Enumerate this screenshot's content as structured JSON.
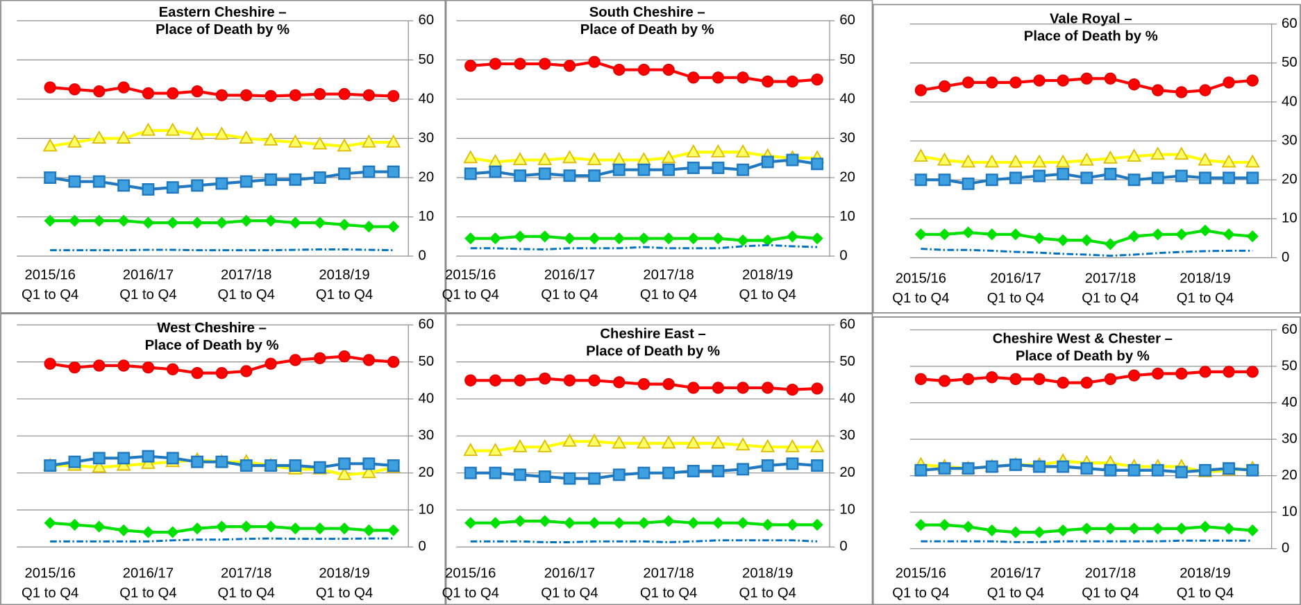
{
  "chart_data": [
    {
      "type": "line",
      "title": "Eastern Cheshire –\nPlace of Death by %",
      "categories": [
        "2015/16\nQ1 to Q4",
        null,
        null,
        null,
        "2016/17\nQ1 to Q4",
        null,
        null,
        null,
        "2017/18\nQ1 to Q4",
        null,
        null,
        null,
        "2018/19\nQ1 to Q4",
        null,
        null
      ],
      "series": [
        {
          "color": "#ff0000",
          "marker": "circle",
          "values": [
            43,
            42.5,
            42,
            43,
            41.5,
            41.5,
            42,
            41,
            41,
            40.8,
            41,
            41.3,
            41.3,
            41,
            40.8
          ]
        },
        {
          "color": "#ffff00",
          "marker": "triangle",
          "values": [
            28,
            29,
            30,
            30,
            32,
            32,
            31,
            31,
            30,
            29.5,
            29,
            28.5,
            28,
            29,
            29
          ]
        },
        {
          "color": "#1f78c0",
          "marker": "square",
          "values": [
            20,
            19,
            19,
            18,
            17,
            17.5,
            18,
            18.5,
            19,
            19.5,
            19.5,
            20,
            21,
            21.5,
            21.5
          ]
        },
        {
          "color": "#00e000",
          "marker": "diamond",
          "values": [
            9,
            9,
            9,
            9,
            8.5,
            8.5,
            8.5,
            8.5,
            9,
            9,
            8.5,
            8.5,
            8,
            7.5,
            7.5
          ]
        },
        {
          "color": "#0070c0",
          "dash": "dashdot",
          "values": [
            1.5,
            1.5,
            1.5,
            1.5,
            1.6,
            1.6,
            1.5,
            1.5,
            1.5,
            1.5,
            1.6,
            1.7,
            1.7,
            1.6,
            1.5
          ]
        }
      ],
      "ylim": [
        0,
        60
      ],
      "yticks": [
        0,
        10,
        20,
        30,
        40,
        50,
        60
      ],
      "grid": true
    },
    {
      "type": "line",
      "title": "South Cheshire –\nPlace of Death by %",
      "categories": [
        "2015/16\nQ1 to Q4",
        null,
        null,
        null,
        "2016/17\nQ1 to Q4",
        null,
        null,
        null,
        "2017/18\nQ1 to Q4",
        null,
        null,
        null,
        "2018/19\nQ1 to Q4",
        null,
        null
      ],
      "series": [
        {
          "color": "#ff0000",
          "marker": "circle",
          "values": [
            48.5,
            49,
            49,
            49,
            48.5,
            49.5,
            47.5,
            47.5,
            47.5,
            45.5,
            45.5,
            45.5,
            44.5,
            44.5,
            45
          ]
        },
        {
          "color": "#ffff00",
          "marker": "triangle",
          "values": [
            25,
            24,
            24.5,
            24.5,
            25,
            24.5,
            24.5,
            24.5,
            25,
            26.5,
            26.5,
            26.5,
            25.5,
            25,
            25
          ]
        },
        {
          "color": "#1f78c0",
          "marker": "square",
          "values": [
            21,
            21.5,
            20.5,
            21,
            20.5,
            20.5,
            22,
            22,
            22,
            22.5,
            22.5,
            22,
            24,
            24.5,
            23.5
          ]
        },
        {
          "color": "#00e000",
          "marker": "diamond",
          "values": [
            4.5,
            4.5,
            5,
            5,
            4.5,
            4.5,
            4.5,
            4.5,
            4.5,
            4.5,
            4.5,
            4,
            4,
            5,
            4.5
          ]
        },
        {
          "color": "#0070c0",
          "dash": "dashdot",
          "values": [
            2,
            2,
            1.8,
            1.7,
            2,
            2,
            2,
            2.3,
            2,
            2,
            2,
            2.5,
            2.8,
            2.5,
            2.3
          ]
        }
      ],
      "ylim": [
        0,
        60
      ],
      "yticks": [
        0,
        10,
        20,
        30,
        40,
        50,
        60
      ],
      "grid": true
    },
    {
      "type": "line",
      "title": "Vale Royal –\nPlace of Death by %",
      "categories": [
        "2015/16\nQ1 to Q4",
        null,
        null,
        null,
        "2016/17\nQ1 to Q4",
        null,
        null,
        null,
        "2017/18\nQ1 to Q4",
        null,
        null,
        null,
        "2018/19\nQ1 to Q4",
        null,
        null
      ],
      "series": [
        {
          "color": "#ff0000",
          "marker": "circle",
          "values": [
            43,
            44,
            45,
            45,
            45,
            45.5,
            45.5,
            46,
            46,
            44.5,
            43,
            42.5,
            43,
            45,
            45.5
          ]
        },
        {
          "color": "#ffff00",
          "marker": "triangle",
          "values": [
            26,
            25,
            24.5,
            24.5,
            24.5,
            24.5,
            24.5,
            25,
            25.5,
            26,
            26.5,
            26.5,
            25,
            24.5,
            24.5
          ]
        },
        {
          "color": "#1f78c0",
          "marker": "square",
          "values": [
            20,
            20,
            19,
            20,
            20.5,
            21,
            21.5,
            20.5,
            21.5,
            20,
            20.5,
            21,
            20.5,
            20.5,
            20.5
          ]
        },
        {
          "color": "#00e000",
          "marker": "diamond",
          "values": [
            6,
            6,
            6.5,
            6,
            6,
            5,
            4.5,
            4.5,
            3.5,
            5.5,
            6,
            6,
            7,
            6,
            5.5
          ]
        },
        {
          "color": "#0070c0",
          "dash": "dashdot",
          "values": [
            2.3,
            2,
            2,
            1.8,
            1.5,
            1.3,
            1,
            0.8,
            0.5,
            0.8,
            1.2,
            1.5,
            1.7,
            1.8,
            1.8
          ]
        }
      ],
      "ylim": [
        0,
        60
      ],
      "yticks": [
        0,
        10,
        20,
        30,
        40,
        50,
        60
      ],
      "grid": true
    },
    {
      "type": "line",
      "title": "West Cheshire –\nPlace of Death by %",
      "categories": [
        "2015/16\nQ1 to Q4",
        null,
        null,
        null,
        "2016/17\nQ1 to Q4",
        null,
        null,
        null,
        "2017/18\nQ1 to Q4",
        null,
        null,
        null,
        "2018/19\nQ1 to Q4",
        null,
        null
      ],
      "series": [
        {
          "color": "#ff0000",
          "marker": "circle",
          "values": [
            49.5,
            48.5,
            49,
            49,
            48.5,
            48,
            47,
            47,
            47.5,
            49.5,
            50.5,
            51,
            51.5,
            50.5,
            50
          ]
        },
        {
          "color": "#ffff00",
          "marker": "triangle",
          "values": [
            22,
            22,
            21.5,
            22,
            22.5,
            23,
            23.5,
            23,
            23,
            22,
            21,
            21,
            19.5,
            20,
            21.5
          ]
        },
        {
          "color": "#1f78c0",
          "marker": "square",
          "values": [
            22,
            23,
            24,
            24,
            24.5,
            24,
            23,
            23,
            22,
            22,
            22,
            21.5,
            22.5,
            22.5,
            22
          ]
        },
        {
          "color": "#00e000",
          "marker": "diamond",
          "values": [
            6.5,
            6,
            5.5,
            4.5,
            4,
            4,
            5,
            5.5,
            5.5,
            5.5,
            5,
            5,
            5,
            4.5,
            4.5
          ]
        },
        {
          "color": "#0070c0",
          "dash": "dashdot",
          "values": [
            1.5,
            1.5,
            1.5,
            1.5,
            1.5,
            1.8,
            2,
            2,
            2.2,
            2.3,
            2.2,
            2.2,
            2.2,
            2.3,
            2.3
          ]
        }
      ],
      "ylim": [
        0,
        60
      ],
      "yticks": [
        0,
        10,
        20,
        30,
        40,
        50,
        60
      ],
      "grid": true
    },
    {
      "type": "line",
      "title": "Cheshire East –\nPlace of Death by %",
      "categories": [
        "2015/16\nQ1 to Q4",
        null,
        null,
        null,
        "2016/17\nQ1 to Q4",
        null,
        null,
        null,
        "2017/18\nQ1 to Q4",
        null,
        null,
        null,
        "2018/19\nQ1 to Q4",
        null,
        null
      ],
      "series": [
        {
          "color": "#ff0000",
          "marker": "circle",
          "values": [
            45,
            45,
            45,
            45.5,
            45,
            45,
            44.5,
            44,
            44,
            43,
            43,
            43,
            43,
            42.5,
            42.8
          ]
        },
        {
          "color": "#ffff00",
          "marker": "triangle",
          "values": [
            26,
            26,
            27,
            27,
            28.5,
            28.5,
            28,
            28,
            28,
            28,
            28,
            27.5,
            27,
            27,
            27
          ]
        },
        {
          "color": "#1f78c0",
          "marker": "square",
          "values": [
            20,
            20,
            19.5,
            19,
            18.5,
            18.5,
            19.5,
            20,
            20,
            20.5,
            20.5,
            21,
            22,
            22.5,
            22
          ]
        },
        {
          "color": "#00e000",
          "marker": "diamond",
          "values": [
            6.5,
            6.5,
            7,
            7,
            6.5,
            6.5,
            6.5,
            6.5,
            7,
            6.5,
            6.5,
            6.5,
            6,
            6,
            6
          ]
        },
        {
          "color": "#0070c0",
          "dash": "dashdot",
          "values": [
            1.5,
            1.5,
            1.5,
            1.3,
            1.3,
            1.5,
            1.5,
            1.5,
            1.3,
            1.5,
            1.8,
            1.8,
            1.8,
            1.8,
            1.5
          ]
        }
      ],
      "ylim": [
        0,
        60
      ],
      "yticks": [
        0,
        10,
        20,
        30,
        40,
        50,
        60
      ],
      "grid": true
    },
    {
      "type": "line",
      "title": "Cheshire West & Chester –\nPlace of Death by %",
      "categories": [
        "2015/16\nQ1 to Q4",
        null,
        null,
        null,
        "2016/17\nQ1 to Q4",
        null,
        null,
        null,
        "2017/18\nQ1 to Q4",
        null,
        null,
        null,
        "2018/19\nQ1 to Q4",
        null,
        null
      ],
      "series": [
        {
          "color": "#ff0000",
          "marker": "circle",
          "values": [
            46.5,
            46,
            46.5,
            47,
            46.5,
            46.5,
            45.5,
            45.5,
            46.5,
            47.5,
            48,
            48,
            48.5,
            48.5,
            48.5
          ]
        },
        {
          "color": "#ffff00",
          "marker": "triangle",
          "values": [
            23,
            22.5,
            22,
            22.5,
            23,
            23,
            24,
            23.5,
            23.5,
            22.5,
            22.5,
            22.5,
            21,
            21.5,
            22
          ]
        },
        {
          "color": "#1f78c0",
          "marker": "square",
          "values": [
            21.5,
            22,
            22,
            22.5,
            23,
            22.5,
            22.5,
            22,
            21.5,
            21.5,
            21.5,
            21,
            21.5,
            22,
            21.5
          ]
        },
        {
          "color": "#00e000",
          "marker": "diamond",
          "values": [
            6.5,
            6.5,
            6,
            5,
            4.5,
            4.5,
            5,
            5.5,
            5.5,
            5.5,
            5.5,
            5.5,
            6,
            5.5,
            5
          ]
        },
        {
          "color": "#0070c0",
          "dash": "dashdot",
          "values": [
            2,
            2,
            2,
            2,
            1.8,
            1.8,
            2,
            2,
            2,
            2,
            2,
            2.2,
            2.2,
            2.2,
            2.2
          ]
        }
      ],
      "ylim": [
        0,
        60
      ],
      "yticks": [
        0,
        10,
        20,
        30,
        40,
        50,
        60
      ],
      "grid": true
    }
  ]
}
